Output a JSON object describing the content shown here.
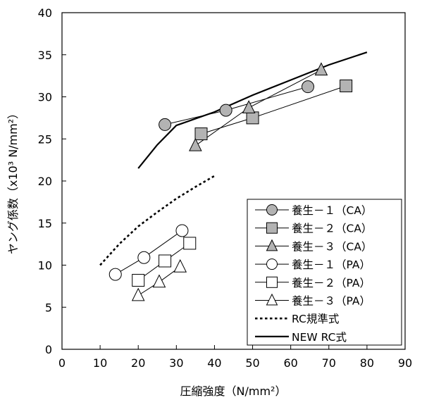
{
  "chart_data": {
    "type": "scatter",
    "xlabel": "圧縮強度（N/mm²）",
    "ylabel": "ヤング係数（x10³ N/mm²）",
    "xlim": [
      0,
      90
    ],
    "ylim": [
      0,
      40
    ],
    "x_ticks": [
      "0",
      "10",
      "20",
      "30",
      "40",
      "50",
      "60",
      "70",
      "80",
      "90"
    ],
    "y_ticks": [
      "0",
      "5",
      "10",
      "15",
      "20",
      "25",
      "30",
      "35",
      "40"
    ],
    "grid": false,
    "legend_position": "bottom-right",
    "series": [
      {
        "name": "養生－１（CA）",
        "marker": "circle",
        "fill": "#b3b3b3",
        "points": [
          [
            27,
            26.7
          ],
          [
            43,
            28.4
          ],
          [
            64.5,
            31.2
          ]
        ]
      },
      {
        "name": "養生－２（CA）",
        "marker": "square",
        "fill": "#b3b3b3",
        "points": [
          [
            36.5,
            25.6
          ],
          [
            50,
            27.5
          ],
          [
            74.5,
            31.3
          ]
        ]
      },
      {
        "name": "養生－３（CA）",
        "marker": "triangle",
        "fill": "#b3b3b3",
        "points": [
          [
            35,
            24.2
          ],
          [
            49,
            28.7
          ],
          [
            68,
            33.2
          ]
        ]
      },
      {
        "name": "養生－１（PA）",
        "marker": "circle",
        "fill": "#ffffff",
        "points": [
          [
            14,
            8.9
          ],
          [
            21.5,
            10.9
          ],
          [
            31.5,
            14.1
          ]
        ]
      },
      {
        "name": "養生－２（PA）",
        "marker": "square",
        "fill": "#ffffff",
        "points": [
          [
            20,
            8.2
          ],
          [
            27,
            10.5
          ],
          [
            33.5,
            12.6
          ]
        ]
      },
      {
        "name": "養生－３（PA）",
        "marker": "triangle",
        "fill": "#ffffff",
        "points": [
          [
            20,
            6.4
          ],
          [
            25.5,
            8.0
          ],
          [
            31,
            9.8
          ]
        ]
      },
      {
        "name": "RC規準式",
        "style": "dotted",
        "points": [
          [
            10,
            10.0
          ],
          [
            15,
            12.5
          ],
          [
            20,
            14.6
          ],
          [
            25,
            16.3
          ],
          [
            30,
            17.9
          ],
          [
            35,
            19.3
          ],
          [
            40,
            20.6
          ]
        ]
      },
      {
        "name": "NEW RC式",
        "style": "solid",
        "points": [
          [
            20,
            21.5
          ],
          [
            25,
            24.3
          ],
          [
            30,
            26.6
          ],
          [
            40,
            28.2
          ],
          [
            50,
            30.2
          ],
          [
            60,
            32.0
          ],
          [
            70,
            33.8
          ],
          [
            80,
            35.3
          ]
        ]
      }
    ]
  }
}
